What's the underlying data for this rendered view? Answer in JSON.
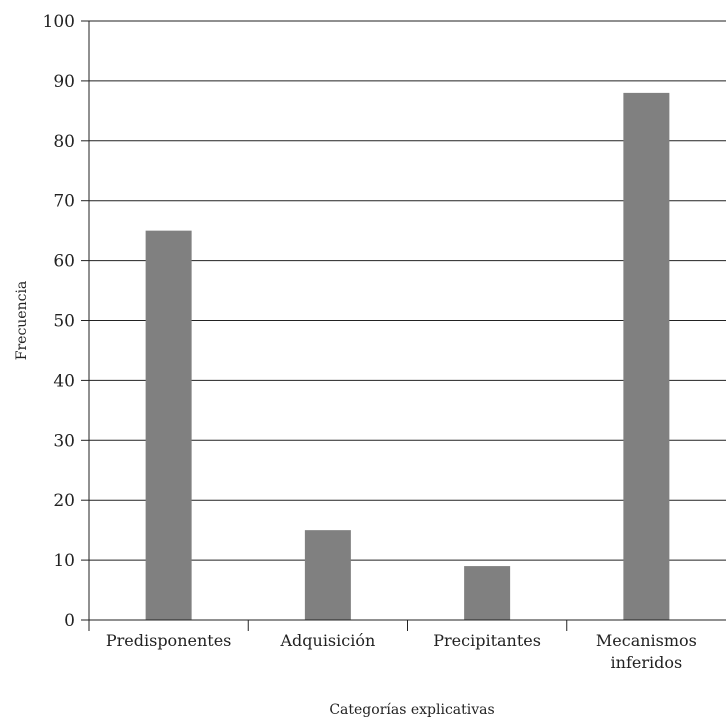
{
  "chart_data": {
    "type": "bar",
    "title": "",
    "xlabel": "Categorías explicativas",
    "ylabel": "Frecuencia",
    "ylim": [
      0,
      100
    ],
    "yticks": [
      0,
      10,
      20,
      30,
      40,
      50,
      60,
      70,
      80,
      90,
      100
    ],
    "grid": true,
    "categories": [
      [
        "Predisponentes"
      ],
      [
        "Adquisición"
      ],
      [
        "Precipitantes"
      ],
      [
        "Mecanismos",
        "inferidos"
      ]
    ],
    "values": [
      65,
      15,
      9,
      88
    ],
    "colors": {
      "bar": "#808080",
      "axis": "#222222",
      "grid": "#222222"
    }
  }
}
